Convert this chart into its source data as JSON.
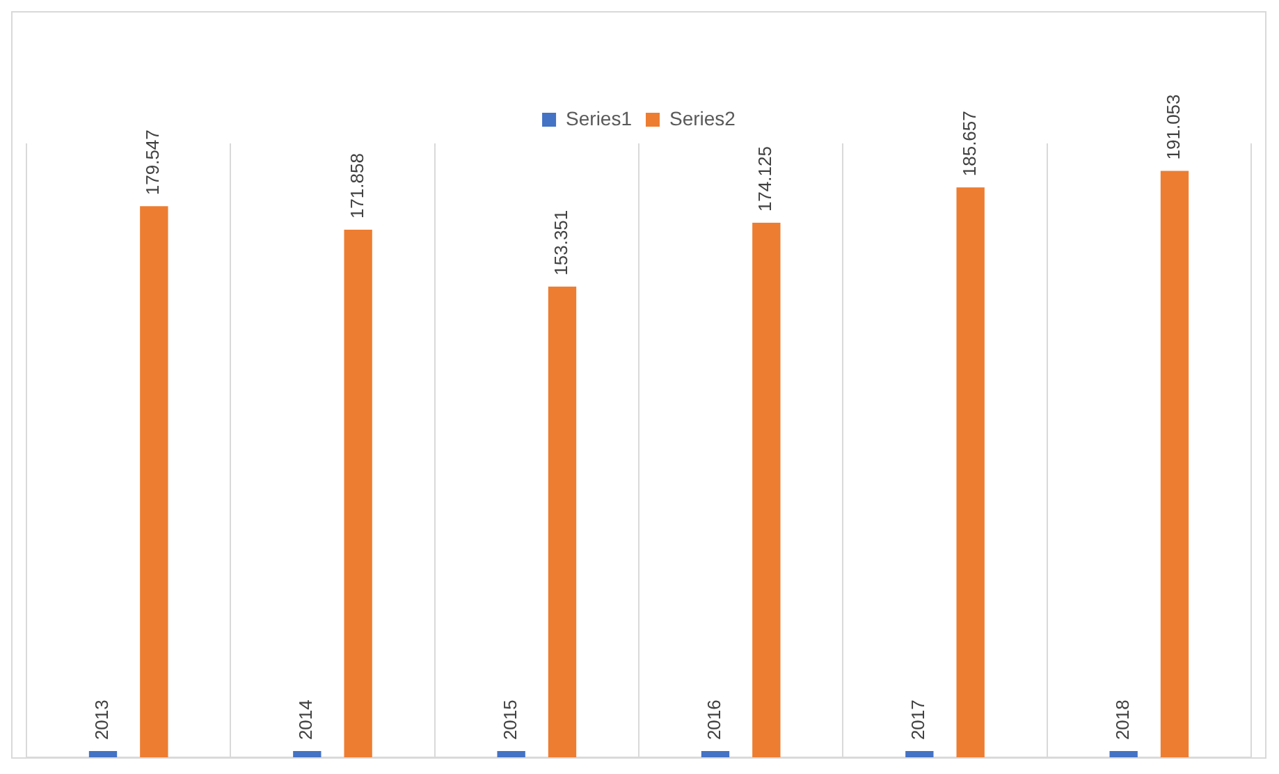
{
  "chart_data": {
    "type": "bar",
    "categories": [
      null,
      null,
      null,
      null,
      null,
      null
    ],
    "series": [
      {
        "name": "Series1",
        "color": "#4472c4",
        "values": [
          2013,
          2014,
          2015,
          2016,
          2017,
          2018
        ],
        "value_labels": [
          "2013",
          "2014",
          "2015",
          "2016",
          "2017",
          "2018"
        ]
      },
      {
        "name": "Series2",
        "color": "#ed7d31",
        "values": [
          179547,
          171858,
          153351,
          174125,
          185657,
          191053
        ],
        "value_labels": [
          "179.547",
          "171.858",
          "153.351",
          "174.125",
          "185.657",
          "191.053"
        ]
      }
    ],
    "grid": "x",
    "legend": "top"
  }
}
